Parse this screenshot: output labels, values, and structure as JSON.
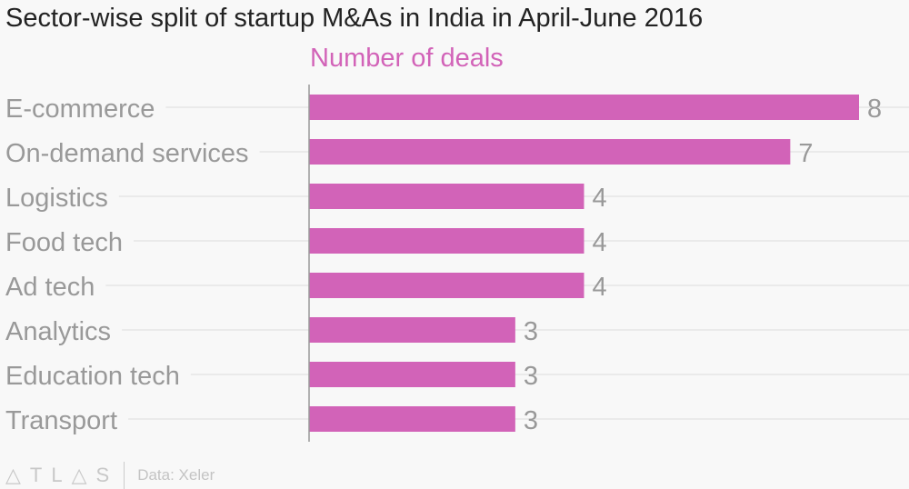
{
  "chart_data": {
    "type": "bar",
    "orientation": "horizontal",
    "title": "Sector-wise split of startup M&As in India in April-June 2016",
    "subtitle": "Number of deals",
    "categories": [
      "E-commerce",
      "On-demand services",
      "Logistics",
      "Food tech",
      "Ad tech",
      "Analytics",
      "Education tech",
      "Transport"
    ],
    "values": [
      8,
      7,
      4,
      4,
      4,
      3,
      3,
      3
    ],
    "xlim": [
      0,
      8
    ],
    "xlabel": "",
    "ylabel": "",
    "grid": true,
    "colors": {
      "bar": "#d263b8",
      "label": "#999999",
      "value": "#999999",
      "grid": "#e6e6e6",
      "axis": "#999999"
    }
  },
  "footer": {
    "logo": "ATLAS",
    "source": "Data: Xeler"
  }
}
